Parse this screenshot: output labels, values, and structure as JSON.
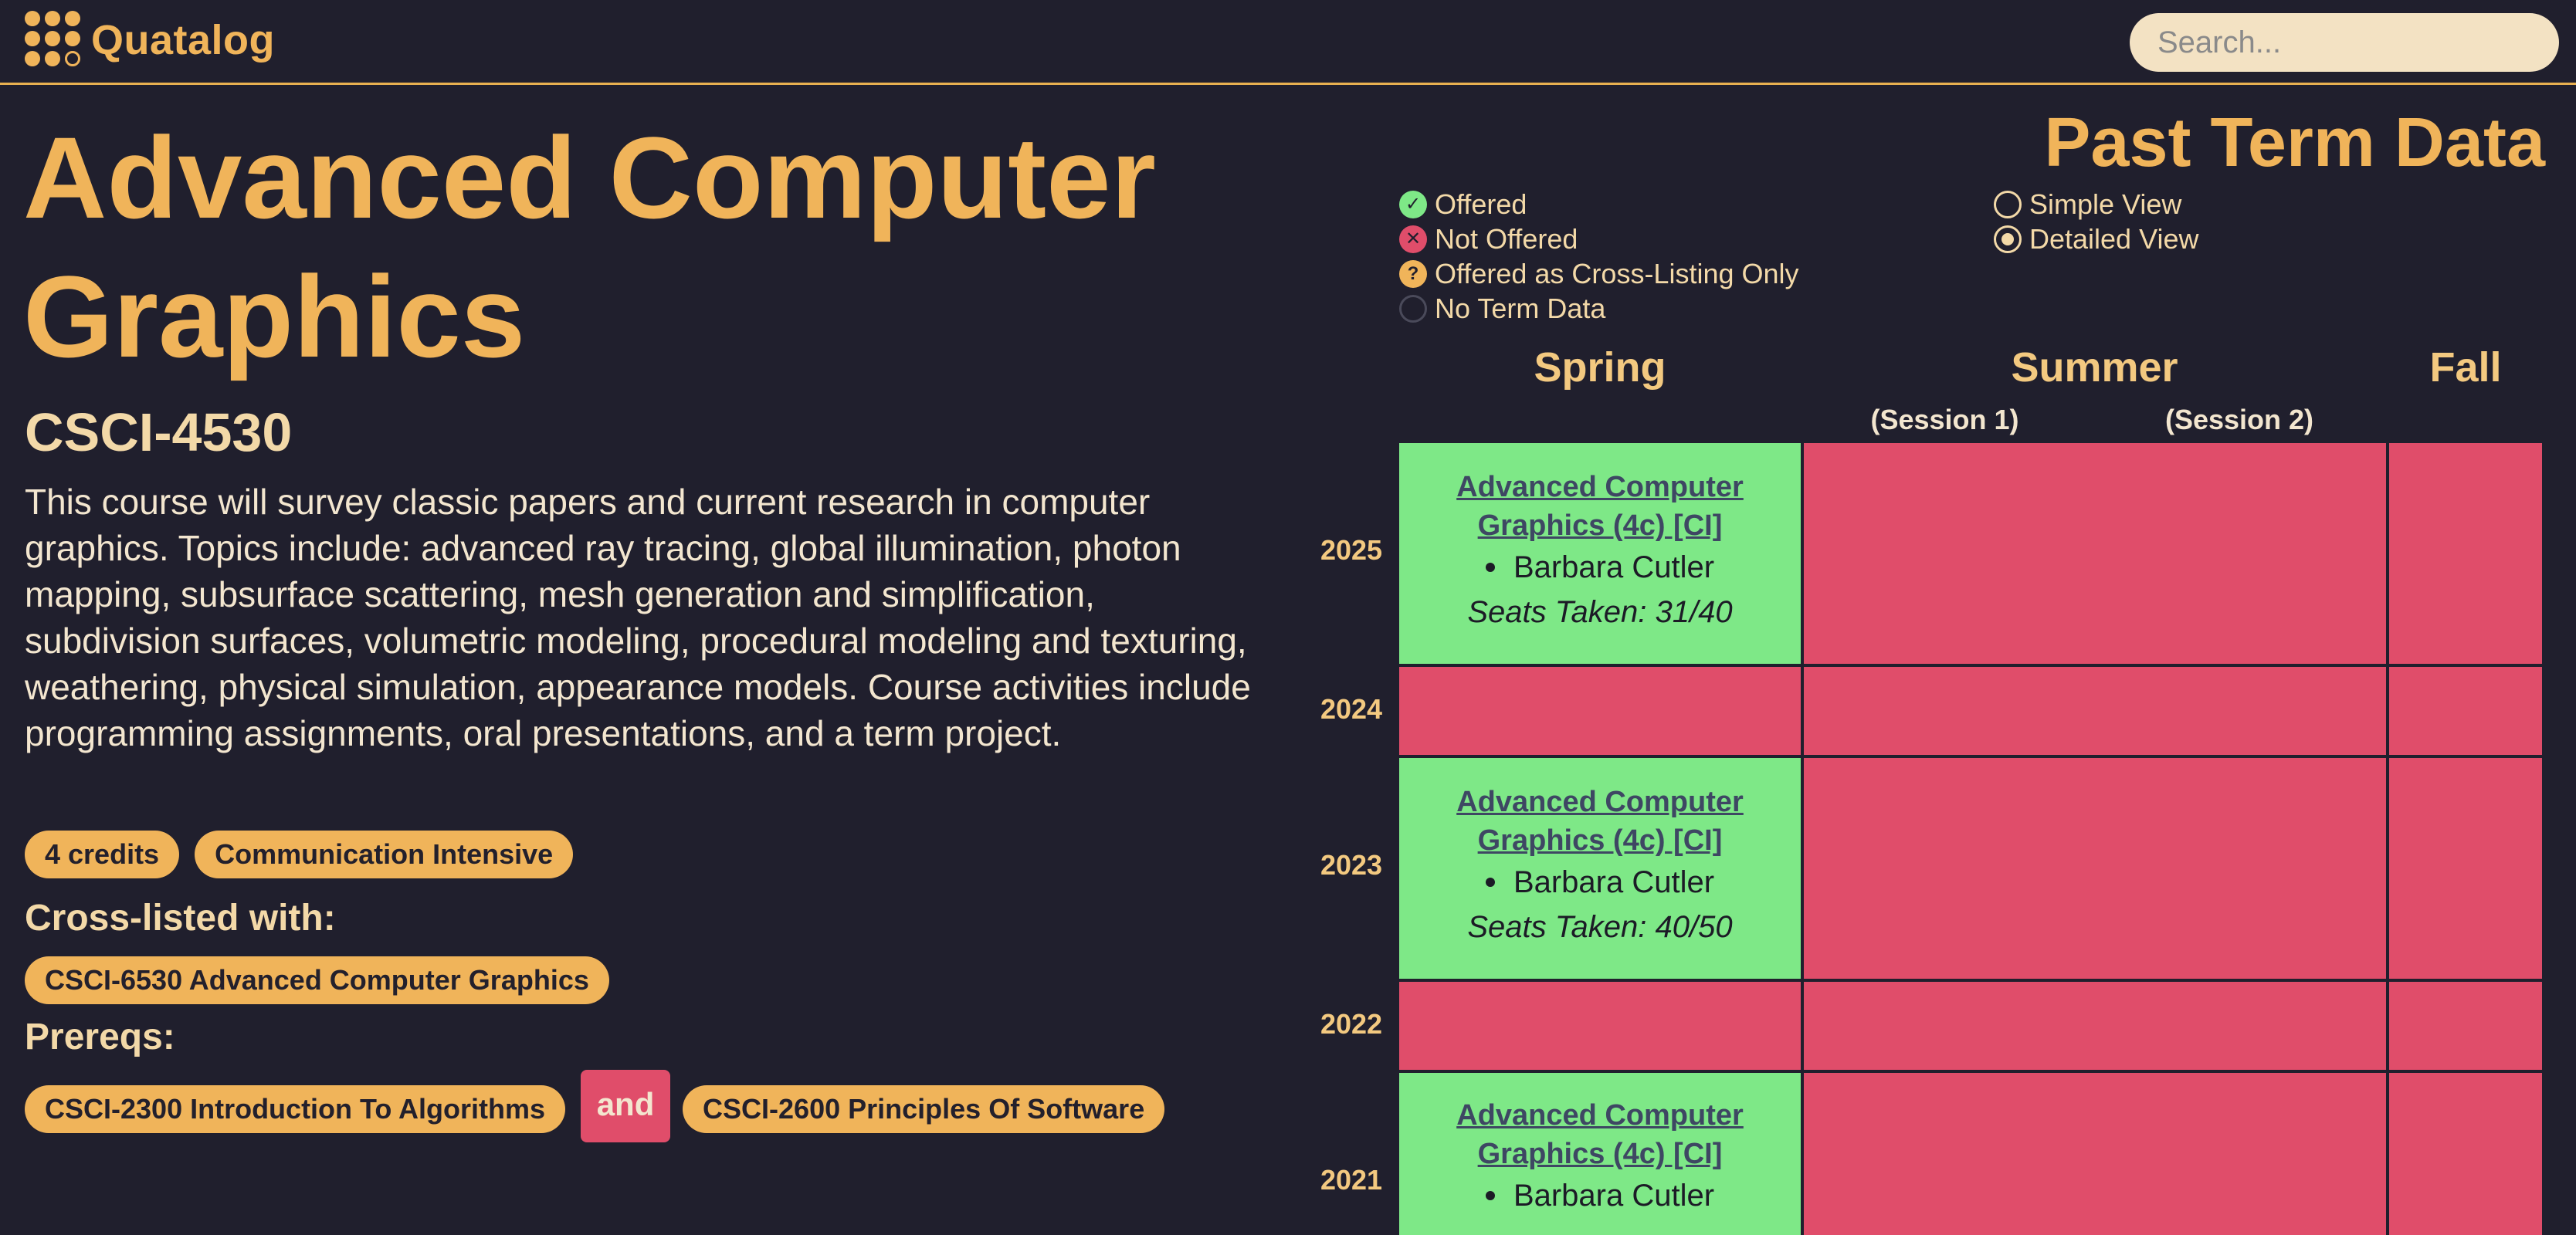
{
  "app": {
    "name": "Quatalog"
  },
  "search": {
    "placeholder": "Search..."
  },
  "course": {
    "title": "Advanced Computer Graphics",
    "code": "CSCI-4530",
    "description": "This course will survey classic papers and current research in computer graphics. Topics include: advanced ray tracing, global illumination, photon mapping, subsurface scattering, mesh generation and simplification, subdivision surfaces, volumetric modeling, procedural modeling and texturing, weathering, physical simulation, appearance models. Course activities include programming assignments, oral presentations, and a term project.",
    "tags": [
      "4 credits",
      "Communication Intensive"
    ],
    "crosslisted_heading": "Cross-listed with:",
    "crosslisted": [
      "CSCI-6530 Advanced Computer Graphics"
    ],
    "prereqs_heading": "Prereqs:",
    "prereqs": [
      "CSCI-2300 Introduction To Algorithms",
      "CSCI-2600 Principles Of Software"
    ],
    "prereq_joiner": "and"
  },
  "past_terms": {
    "title": "Past Term Data",
    "legend": [
      {
        "label": "Offered",
        "icon": "check-circle-icon",
        "color": "#7ee887"
      },
      {
        "label": "Not Offered",
        "icon": "x-circle-icon",
        "color": "#e04d6a"
      },
      {
        "label": "Offered as Cross-Listing Only",
        "icon": "question-circle-icon",
        "color": "#f0b45a"
      },
      {
        "label": "No Term Data",
        "icon": "empty-circle-icon",
        "color": "#4a4a5a"
      }
    ],
    "views": [
      {
        "label": "Simple View",
        "selected": false
      },
      {
        "label": "Detailed View",
        "selected": true
      }
    ],
    "seasons": [
      "Spring",
      "Summer",
      "Fall"
    ],
    "sessions": [
      "(Session 1)",
      "(Session 2)"
    ],
    "years": [
      "2025",
      "2024",
      "2023",
      "2022",
      "2021"
    ],
    "offerings": {
      "2025": {
        "course": "Advanced Computer Graphics (4c) [CI]",
        "instructor": "Barbara Cutler",
        "seats": "Seats Taken: 31/40"
      },
      "2023": {
        "course": "Advanced Computer Graphics (4c) [CI]",
        "instructor": "Barbara Cutler",
        "seats": "Seats Taken: 40/50"
      },
      "2021": {
        "course": "Advanced Computer Graphics (4c) [CI]",
        "instructor": "Barbara Cutler"
      }
    }
  }
}
